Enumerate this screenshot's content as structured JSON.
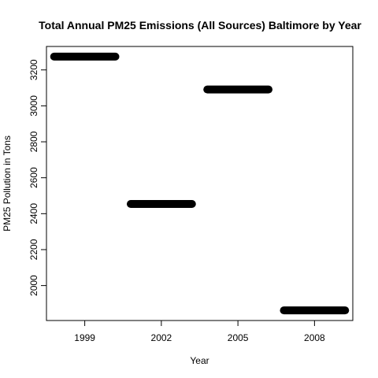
{
  "chart_data": {
    "type": "line",
    "title": "Total Annual PM25 Emissions (All Sources) Baltimore by Year",
    "xlabel": "Year",
    "ylabel": "PM25 Pollution in Tons",
    "categories": [
      "1999",
      "2002",
      "2005",
      "2008"
    ],
    "values": [
      3274,
      2454,
      3091,
      1862
    ],
    "ylim": [
      1862,
      3274
    ],
    "yticks": [
      2000,
      2200,
      2400,
      2600,
      2800,
      3000,
      3200
    ],
    "grid": false,
    "legend": "none",
    "line_color": "#000000"
  }
}
